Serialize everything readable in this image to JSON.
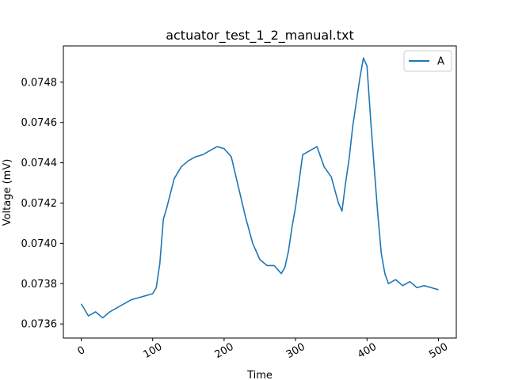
{
  "chart_data": {
    "type": "line",
    "title": "actuator_test_1_2_manual.txt",
    "xlabel": "Time",
    "ylabel": "Voltage (mV)",
    "xlim": [
      -25,
      525
    ],
    "ylim": [
      0.07353,
      0.07498
    ],
    "xticks": [
      0,
      100,
      200,
      300,
      400,
      500
    ],
    "yticks": [
      0.0736,
      0.0738,
      0.074,
      0.0742,
      0.0744,
      0.0746,
      0.0748
    ],
    "ytick_labels": [
      "0.0736",
      "0.0738",
      "0.0740",
      "0.0742",
      "0.0744",
      "0.0746",
      "0.0748"
    ],
    "xtick_rotation": -30,
    "grid": false,
    "legend": {
      "position": "top-right",
      "entries": [
        "A"
      ]
    },
    "series": [
      {
        "name": "A",
        "color": "#1f77b4",
        "x": [
          0,
          10,
          20,
          30,
          40,
          50,
          60,
          70,
          80,
          90,
          100,
          105,
          110,
          115,
          120,
          125,
          130,
          140,
          150,
          160,
          170,
          180,
          190,
          200,
          210,
          220,
          230,
          240,
          250,
          260,
          270,
          280,
          285,
          290,
          295,
          300,
          310,
          320,
          330,
          340,
          350,
          360,
          365,
          370,
          375,
          380,
          385,
          390,
          395,
          400,
          405,
          410,
          415,
          420,
          425,
          430,
          440,
          450,
          460,
          470,
          480,
          490,
          500
        ],
        "y": [
          0.0737,
          0.07364,
          0.07366,
          0.07363,
          0.07366,
          0.07368,
          0.0737,
          0.07372,
          0.07373,
          0.07374,
          0.07375,
          0.07378,
          0.0739,
          0.07412,
          0.07418,
          0.07425,
          0.07432,
          0.07438,
          0.07441,
          0.07443,
          0.07444,
          0.07446,
          0.07448,
          0.07447,
          0.07443,
          0.07428,
          0.07413,
          0.074,
          0.07392,
          0.07389,
          0.07389,
          0.07385,
          0.07388,
          0.07396,
          0.07408,
          0.07418,
          0.07444,
          0.07446,
          0.07448,
          0.07438,
          0.07433,
          0.0742,
          0.07416,
          0.0743,
          0.07442,
          0.07458,
          0.0747,
          0.07482,
          0.07492,
          0.07488,
          0.07462,
          0.07438,
          0.07415,
          0.07395,
          0.07385,
          0.0738,
          0.07382,
          0.07379,
          0.07381,
          0.07378,
          0.07379,
          0.07378,
          0.07377
        ]
      }
    ]
  }
}
